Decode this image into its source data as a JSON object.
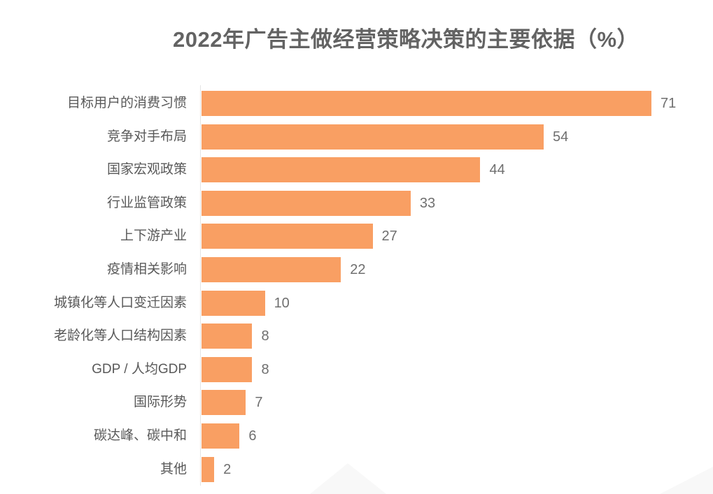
{
  "page": {
    "background_color": "#ffffff",
    "watermark_color": "#f8f8f8"
  },
  "chart_data": {
    "type": "bar",
    "orientation": "horizontal",
    "title": "2022年广告主做经营策略决策的主要依据（%）",
    "categories": [
      "目标用户的消费习惯",
      "竞争对手布局",
      "国家宏观政策",
      "行业监管政策",
      "上下游产业",
      "疫情相关影响",
      "城镇化等人口变迁因素",
      "老龄化等人口结构因素",
      "GDP / 人均GDP",
      "国际形势",
      "碳达峰、碳中和",
      "其他"
    ],
    "values": [
      71,
      54,
      44,
      33,
      27,
      22,
      10,
      8,
      8,
      7,
      6,
      2
    ],
    "xlabel": "",
    "ylabel": "",
    "xlim": [
      0,
      71
    ],
    "grid": false,
    "legend": false,
    "value_labels_shown": true,
    "bar_color": "#f99f63",
    "title_color": "#636363",
    "label_color": "#595959",
    "value_color": "#6f6f6f",
    "axis_line_color": "#e4e4e4"
  }
}
